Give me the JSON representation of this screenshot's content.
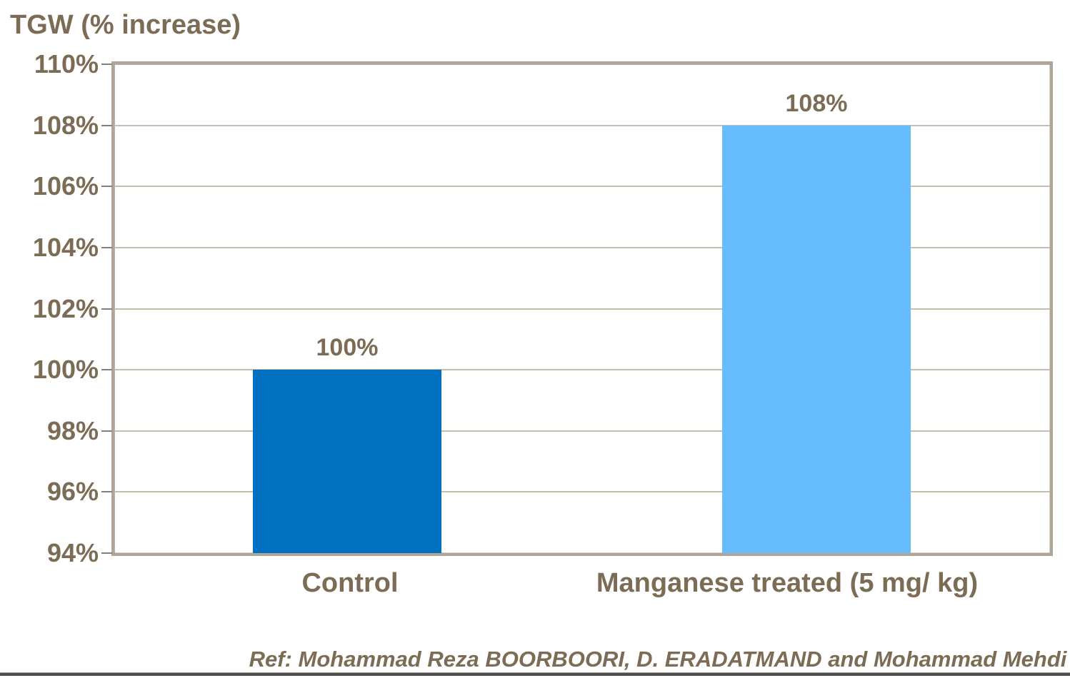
{
  "chart_data": {
    "type": "bar",
    "title": "TGW (% increase)",
    "categories": [
      "Control",
      "Manganese treated (5 mg/ kg)"
    ],
    "series": [
      {
        "name": "TGW % increase",
        "values": [
          100,
          108
        ]
      }
    ],
    "data_labels": [
      "100%",
      "108%"
    ],
    "bar_colors": [
      "#0070c0",
      "#67bdfb"
    ],
    "ylim": [
      94,
      110
    ],
    "ytick_step": 2,
    "ytick_labels": [
      "94%",
      "96%",
      "98%",
      "100%",
      "102%",
      "104%",
      "106%",
      "108%",
      "110%"
    ],
    "xlabel": "",
    "ylabel": "TGW (% increase)",
    "grid": true,
    "legend_position": "none"
  },
  "caption": "Ref: Mohammad Reza BOORBOORI, D. ERADATMAND and Mohammad Mehdi",
  "colors": {
    "label_text": "#7d6c55",
    "gridline": "#c6bdb1",
    "plot_border": "#b0a698",
    "tick": "#808080",
    "bar_control": "#0070c0",
    "bar_treated": "#67bdfb",
    "bottom_rule": "#4e4e4e",
    "background": "#ffffff"
  }
}
